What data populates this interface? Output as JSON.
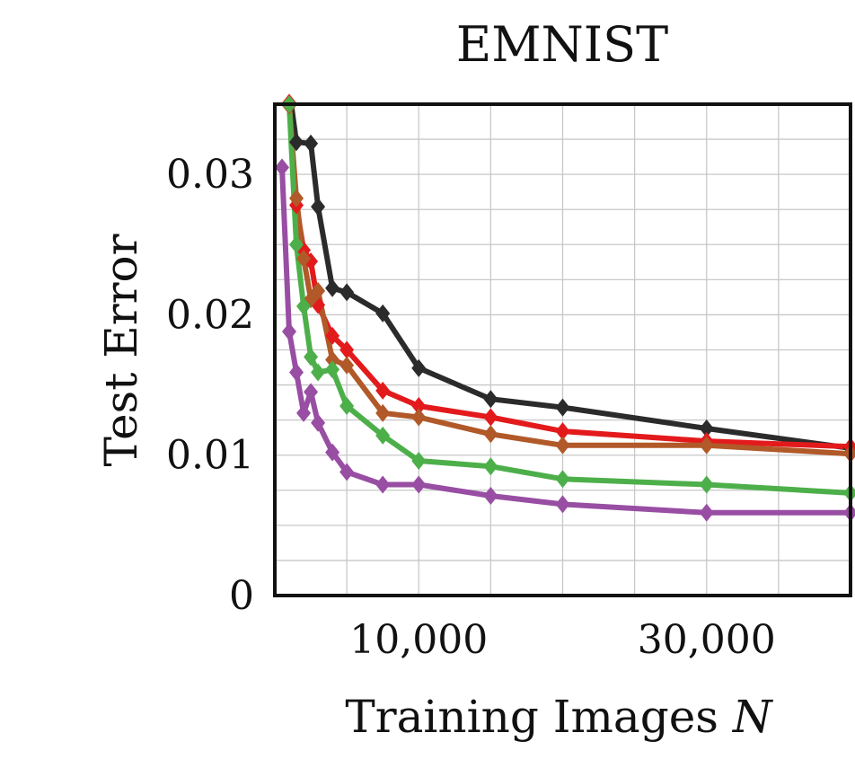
{
  "chart_data": {
    "type": "line",
    "title": "EMNIST",
    "xlabel": "Training Images N",
    "xlabel_main": "Training Images ",
    "xlabel_var": "N",
    "ylabel": "Test Error",
    "xlim": [
      0,
      40000
    ],
    "ylim": [
      0,
      0.035
    ],
    "x_ticks": [
      10000,
      30000
    ],
    "x_tick_labels": [
      "10,000",
      "30,000"
    ],
    "y_ticks": [
      0,
      0.01,
      0.02,
      0.03
    ],
    "y_tick_labels": [
      "0",
      "0.01",
      "0.02",
      "0.03"
    ],
    "grid": true,
    "series": [
      {
        "color": "#2b2b2b",
        "points": [
          [
            1000,
            0.0361
          ],
          [
            1500,
            0.0323
          ],
          [
            2500,
            0.0322
          ],
          [
            3000,
            0.0277
          ],
          [
            4000,
            0.0219
          ],
          [
            5000,
            0.0216
          ],
          [
            7500,
            0.0201
          ],
          [
            10000,
            0.0162
          ],
          [
            15000,
            0.014
          ],
          [
            20000,
            0.0134
          ],
          [
            30000,
            0.0119
          ],
          [
            40000,
            0.0105
          ]
        ]
      },
      {
        "color": "#e31a1c",
        "points": [
          [
            1000,
            0.0351
          ],
          [
            1500,
            0.0278
          ],
          [
            2000,
            0.0246
          ],
          [
            2500,
            0.0238
          ],
          [
            3000,
            0.0207
          ],
          [
            4000,
            0.0185
          ],
          [
            5000,
            0.0175
          ],
          [
            7500,
            0.0146
          ],
          [
            10000,
            0.0135
          ],
          [
            15000,
            0.0127
          ],
          [
            20000,
            0.0117
          ],
          [
            30000,
            0.011
          ],
          [
            40000,
            0.0106
          ]
        ]
      },
      {
        "color": "#b15928",
        "points": [
          [
            1000,
            0.0349
          ],
          [
            1500,
            0.0283
          ],
          [
            2000,
            0.024
          ],
          [
            2500,
            0.0211
          ],
          [
            3000,
            0.0217
          ],
          [
            4000,
            0.0168
          ],
          [
            5000,
            0.0164
          ],
          [
            7500,
            0.013
          ],
          [
            10000,
            0.0127
          ],
          [
            15000,
            0.0115
          ],
          [
            20000,
            0.0107
          ],
          [
            30000,
            0.0107
          ],
          [
            40000,
            0.0101
          ]
        ]
      },
      {
        "color": "#4daf4a",
        "points": [
          [
            1000,
            0.035
          ],
          [
            1500,
            0.025
          ],
          [
            2000,
            0.0206
          ],
          [
            2500,
            0.017
          ],
          [
            3000,
            0.0159
          ],
          [
            4000,
            0.0161
          ],
          [
            5000,
            0.0135
          ],
          [
            7500,
            0.0114
          ],
          [
            10000,
            0.0096
          ],
          [
            15000,
            0.0092
          ],
          [
            20000,
            0.0083
          ],
          [
            30000,
            0.0079
          ],
          [
            40000,
            0.0073
          ]
        ]
      },
      {
        "color": "#984ea3",
        "points": [
          [
            500,
            0.0305
          ],
          [
            1000,
            0.0188
          ],
          [
            1500,
            0.0159
          ],
          [
            2000,
            0.013
          ],
          [
            2500,
            0.0145
          ],
          [
            3000,
            0.0123
          ],
          [
            4000,
            0.0102
          ],
          [
            5000,
            0.0088
          ],
          [
            7500,
            0.0079
          ],
          [
            10000,
            0.0079
          ],
          [
            15000,
            0.0071
          ],
          [
            20000,
            0.0065
          ],
          [
            30000,
            0.0059
          ],
          [
            40000,
            0.0059
          ]
        ]
      }
    ]
  }
}
